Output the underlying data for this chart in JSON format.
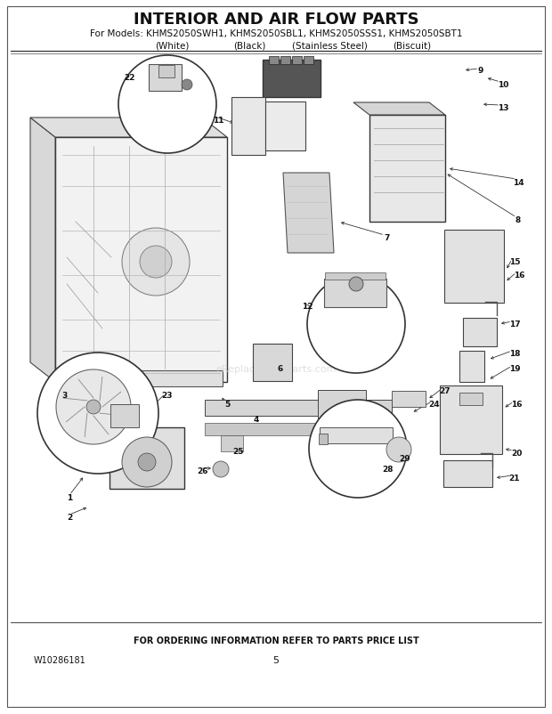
{
  "title": "INTERIOR AND AIR FLOW PARTS",
  "subtitle": "For Models: KHMS2050SWH1, KHMS2050SBL1, KHMS2050SSS1, KHMS2050SBT1",
  "subtitle2_white": "(White)",
  "subtitle2_black": "(Black)",
  "subtitle2_ss": "(Stainless Steel)",
  "subtitle2_biscuit": "(Biscuit)",
  "footer_center": "FOR ORDERING INFORMATION REFER TO PARTS PRICE LIST",
  "footer_left": "W10286181",
  "footer_page": "5",
  "bg_color": "#ffffff",
  "title_fontsize": 13,
  "subtitle_fontsize": 8,
  "fig_width": 6.2,
  "fig_height": 8.03,
  "watermark": "eReplacementParts.com"
}
